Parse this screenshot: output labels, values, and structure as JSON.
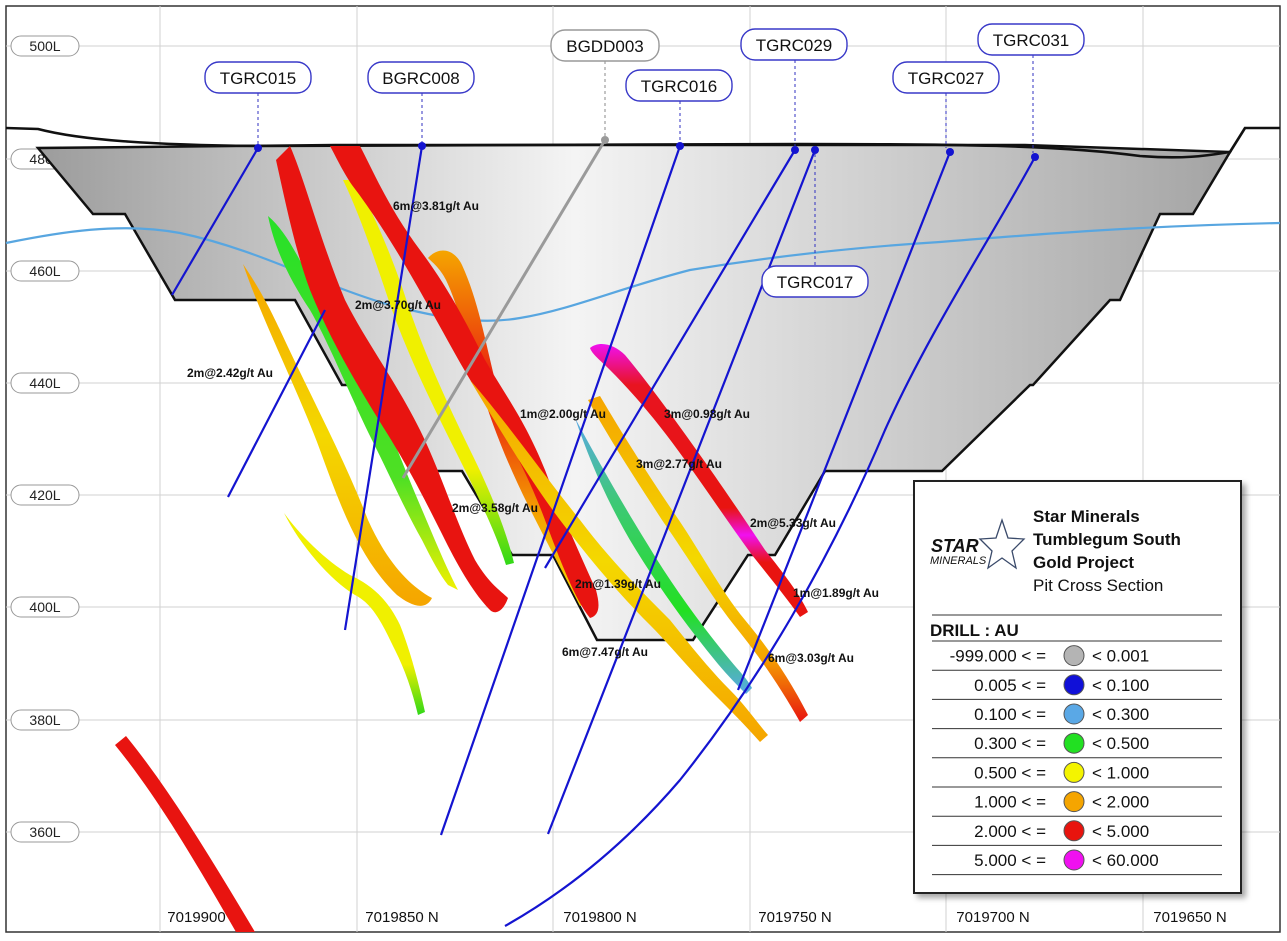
{
  "rl_labels": [
    "500L",
    "480L",
    "460L",
    "440L",
    "420L",
    "400L",
    "380L",
    "360L"
  ],
  "northings": [
    "7019900 N",
    "7019850 N",
    "7019800 N",
    "7019750 N",
    "7019700 N",
    "7019650 N"
  ],
  "holes": [
    "TGRC015",
    "BGRC008",
    "BGDD003",
    "TGRC016",
    "TGRC029",
    "TGRC027",
    "TGRC031",
    "TGRC017"
  ],
  "intercepts": [
    "6m@3.81g/t Au",
    "2m@3.70g/t Au",
    "2m@2.42g/t Au",
    "1m@2.00g/t Au",
    "3m@0.98g/t Au",
    "3m@2.77g/t Au",
    "2m@3.58g/t Au",
    "2m@5.33g/t Au",
    "2m@1.39g/t Au",
    "1m@1.89g/t Au",
    "6m@7.47g/t Au",
    "6m@3.03g/t Au"
  ],
  "legend": {
    "logo_main": "STAR",
    "logo_sub": "MINERALS",
    "title_lines": [
      "Star Minerals",
      "Tumblegum South",
      "Gold Project"
    ],
    "subtitle": "Pit Cross Section",
    "header": "DRILL : AU",
    "rows": [
      {
        "lo": "-999.000 < =",
        "hi": "< 0.001",
        "color": "#b4b4b4"
      },
      {
        "lo": "0.005 < =",
        "hi": "< 0.100",
        "color": "#1010d8"
      },
      {
        "lo": "0.100 < =",
        "hi": "< 0.300",
        "color": "#5aa8e6"
      },
      {
        "lo": "0.300 < =",
        "hi": "< 0.500",
        "color": "#22e022"
      },
      {
        "lo": "0.500 < =",
        "hi": "< 1.000",
        "color": "#f4f400"
      },
      {
        "lo": "1.000 < =",
        "hi": "< 2.000",
        "color": "#f5a500"
      },
      {
        "lo": "2.000 < =",
        "hi": "< 5.000",
        "color": "#e8140e"
      },
      {
        "lo": "5.000 < =",
        "hi": "< 60.000",
        "color": "#f010f0"
      }
    ]
  }
}
